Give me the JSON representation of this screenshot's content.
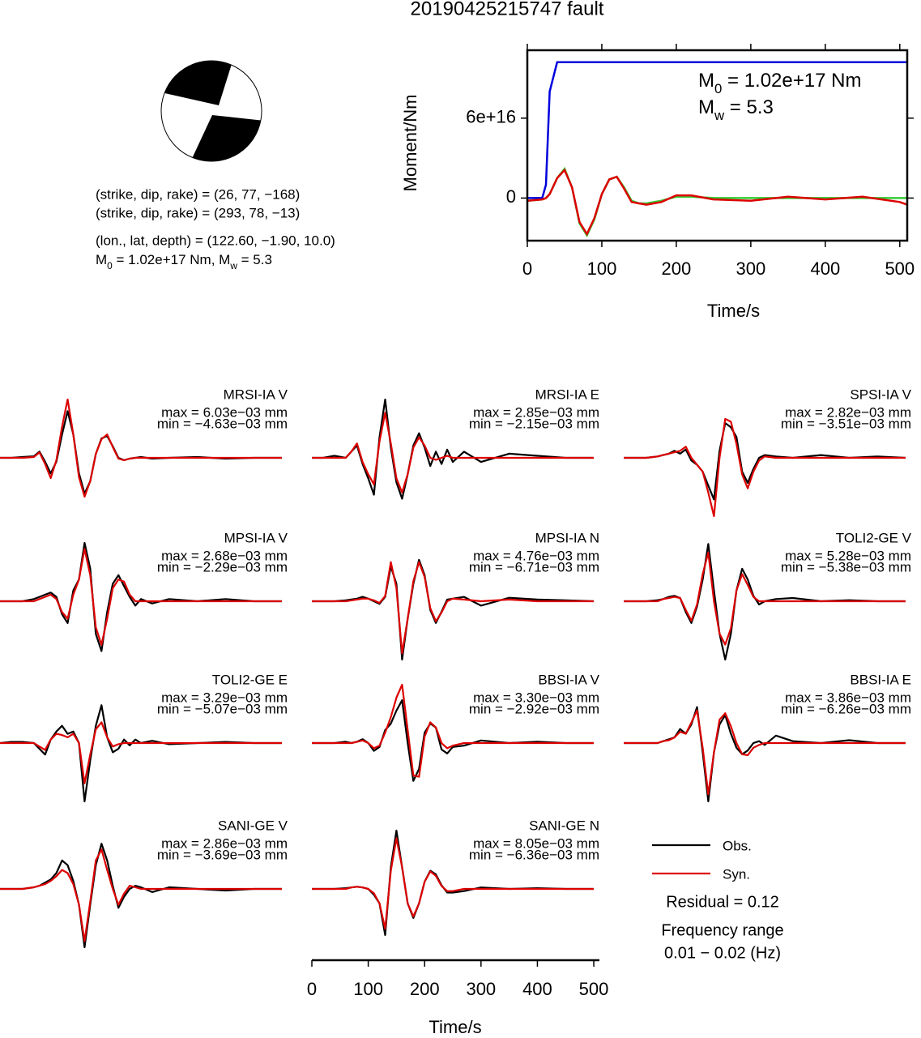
{
  "title": "20190425215747 fault",
  "focal_mechanism": {
    "lines": [
      "(strike, dip, rake) = (26, 77, −168)",
      "(strike, dip, rake) = (293, 78, −13)",
      "(lon., lat, depth) = (122.60, −1.90, 10.0)"
    ],
    "moment_parts": [
      "M",
      "0",
      " = 1.02e+17 Nm, M",
      "w",
      " = 5.3"
    ]
  },
  "chart_data": [
    {
      "type": "line",
      "ylabel": "Moment/Nm",
      "xlabel": "Time/s",
      "x": [
        0,
        20,
        25,
        30,
        40,
        50,
        60,
        70,
        80,
        90,
        100,
        110,
        120,
        130,
        140,
        150,
        160,
        180,
        200,
        220,
        250,
        300,
        350,
        400,
        450,
        500,
        510
      ],
      "xlim": [
        0,
        510
      ],
      "xticks": [
        0,
        100,
        200,
        300,
        400,
        500
      ],
      "ylim": [
        -3.2e+16,
        1.11e+17
      ],
      "yticks": [
        0,
        {
          "value": 6e+16,
          "label": "6e+16"
        }
      ],
      "annotations": [
        [
          "M",
          "0",
          " = 1.02e+17 Nm"
        ],
        [
          "M",
          "w",
          " = 5.3"
        ]
      ],
      "series": [
        {
          "color": "#0000dd",
          "values": [
            0,
            0,
            1e+16,
            8e+16,
            1.02e+17,
            1.02e+17,
            1.02e+17,
            1.02e+17,
            1.02e+17,
            1.02e+17,
            1.02e+17,
            1.02e+17,
            1.02e+17,
            1.02e+17,
            1.02e+17,
            1.02e+17,
            1.02e+17,
            1.02e+17,
            1.02e+17,
            1.02e+17,
            1.02e+17,
            1.02e+17,
            1.02e+17,
            1.02e+17,
            1.02e+17,
            1.02e+17,
            1.02e+17
          ]
        },
        {
          "color": "#33cc33",
          "values": [
            -2000000000000000.0,
            -1000000000000000.0,
            0,
            3000000000000000.0,
            1.5e+16,
            2.2e+16,
            8000000000000000.0,
            -1.9e+16,
            -2.8e+16,
            -1.6e+16,
            3000000000000000.0,
            1.4e+16,
            1.6e+16,
            8000000000000000.0,
            -2000000000000000.0,
            -4000000000000000.0,
            -4000000000000000.0,
            -2000000000000000.0,
            1000000000000000.0,
            1000000000000000.0,
            0,
            0,
            0,
            0,
            0,
            0,
            0
          ]
        },
        {
          "color": "#dd0000",
          "values": [
            -2000000000000000.0,
            -1000000000000000.0,
            0,
            3000000000000000.0,
            1.5e+16,
            2.1e+16,
            8000000000000000.0,
            -1.8e+16,
            -2.7e+16,
            -1.5e+16,
            3000000000000000.0,
            1.4e+16,
            1.6e+16,
            7000000000000000.0,
            -3000000000000000.0,
            -4000000000000000.0,
            -5000000000000000.0,
            -3000000000000000.0,
            2000000000000000.0,
            2000000000000000.0,
            -1000000000000000.0,
            -2000000000000000.0,
            1000000000000000.0,
            -1000000000000000.0,
            1000000000000000.0,
            -3000000000000000.0,
            -5000000000000000.0
          ]
        }
      ]
    },
    {
      "type": "waveforms",
      "xlabel": "Time/s",
      "x": [
        0,
        20,
        40,
        60,
        70,
        80,
        90,
        100,
        110,
        120,
        130,
        140,
        150,
        160,
        170,
        180,
        190,
        200,
        210,
        220,
        230,
        240,
        250,
        270,
        300,
        350,
        400,
        450,
        500
      ],
      "xlim": [
        0,
        510
      ],
      "xticks": [
        0,
        100,
        200,
        300,
        400,
        500
      ],
      "legend": [
        {
          "name": "Obs.",
          "color": "#000000"
        },
        {
          "name": "Syn.",
          "color": "#dd0000"
        }
      ],
      "residual": "Residual = 0.12",
      "frequency": [
        "Frequency range",
        "0.01 − 0.02 (Hz)"
      ],
      "panels": [
        {
          "station": "MRSI-IA V",
          "max_label": "max = 6.03e−03 mm",
          "min_label": "min = −4.63e−03 mm",
          "obs": [
            0,
            0,
            0.1,
            0.2,
            0.8,
            -0.5,
            -2,
            -0.5,
            3,
            6,
            3,
            -2,
            -4.6,
            -3,
            0.5,
            2.5,
            2.8,
            1.5,
            0,
            -0.3,
            -0.1,
            0,
            0.1,
            -0.1,
            0,
            0.1,
            -0.1,
            0,
            0
          ],
          "syn": [
            0,
            0,
            0,
            0.1,
            0.7,
            -0.8,
            -2.6,
            -0.3,
            4,
            7.5,
            3,
            -2.5,
            -5,
            -3,
            0.5,
            2.4,
            3,
            1.4,
            -0.1,
            -0.3,
            -0.1,
            0,
            0,
            0,
            0,
            0,
            0,
            0,
            0
          ]
        },
        {
          "station": "MRSI-IA E",
          "max_label": "max = 2.85e−03 mm",
          "min_label": "min = −2.15e−03 mm",
          "obs": [
            0,
            0,
            0.1,
            0,
            0.3,
            0.6,
            -0.3,
            -1,
            -1.8,
            1,
            2.85,
            0.5,
            -1.2,
            -2,
            -0.8,
            0.6,
            1.2,
            0.5,
            -0.4,
            0.3,
            -0.3,
            0.4,
            -0.2,
            0.3,
            -0.2,
            0.2,
            0.1,
            0,
            0
          ],
          "syn": [
            0,
            0,
            0,
            0,
            0.3,
            0.7,
            -0.2,
            -0.8,
            -1.3,
            0.8,
            2.2,
            0.7,
            -1,
            -1.7,
            -0.8,
            0.5,
            1,
            0.6,
            0,
            -0.1,
            0,
            0.1,
            0,
            0,
            0,
            0,
            0,
            0,
            0
          ]
        },
        {
          "station": "SPSI-IA V",
          "max_label": "max = 2.82e−03 mm",
          "min_label": "min = −3.51e−03 mm",
          "obs": [
            0,
            0,
            0,
            0.1,
            0.2,
            0.3,
            0.5,
            0.3,
            0.6,
            -0.2,
            -0.5,
            -1,
            -2,
            -3,
            0.5,
            2.5,
            2.2,
            1.5,
            -1,
            -1.8,
            -0.8,
            0,
            0.2,
            0.1,
            0,
            0.2,
            0,
            0.1,
            0
          ],
          "syn": [
            0,
            0,
            0,
            0.1,
            0.2,
            0.3,
            0.4,
            0.5,
            0.8,
            0,
            -0.5,
            -1,
            -2.5,
            -4.2,
            0,
            2.8,
            2.6,
            1,
            -1.2,
            -2.2,
            -1,
            -0.2,
            0.1,
            0,
            0,
            0,
            0,
            0,
            0
          ]
        },
        {
          "station": "MPSI-IA V",
          "max_label": "max = 2.68e−03 mm",
          "min_label": "min = −2.29e−03 mm",
          "obs": [
            0,
            0,
            0,
            0.1,
            0.2,
            0.3,
            0.4,
            0.2,
            -0.6,
            -1,
            0.5,
            1,
            2.68,
            1.5,
            -1.5,
            -2.29,
            -0.5,
            0.8,
            1.2,
            0.7,
            0.2,
            -0.2,
            0.1,
            -0.1,
            0.1,
            0,
            0.1,
            0,
            0
          ],
          "syn": [
            0,
            0,
            0,
            0,
            0.1,
            0.2,
            0.3,
            0.1,
            -0.5,
            -0.8,
            0.3,
            1,
            2.4,
            1.2,
            -1.2,
            -2,
            -0.8,
            0.6,
            1,
            0.9,
            0.3,
            0,
            0,
            0,
            0,
            0,
            0,
            0,
            0
          ]
        },
        {
          "station": "MPSI-IA N",
          "max_label": "max = 4.76e−03 mm",
          "min_label": "min = −6.71e−03 mm",
          "obs": [
            0,
            0,
            0,
            0.1,
            0.2,
            0.3,
            0.5,
            0.3,
            0,
            -0.3,
            0.5,
            4,
            2,
            -6.71,
            -2,
            2,
            4.76,
            3,
            -1,
            -2.5,
            -1.2,
            0.2,
            0.3,
            0.5,
            -0.5,
            0.4,
            0.2,
            0.1,
            0
          ],
          "syn": [
            0,
            0,
            0,
            0,
            0.1,
            0.2,
            0.3,
            0.3,
            0.1,
            -0.2,
            0.6,
            4.5,
            1.5,
            -6,
            -2,
            2.3,
            4.5,
            2.8,
            -0.8,
            -2.3,
            -1.3,
            0,
            0.3,
            0.2,
            0,
            0.2,
            0,
            0,
            0
          ]
        },
        {
          "station": "TOLI2-GE V",
          "max_label": "max = 5.28e−03 mm",
          "min_label": "min = −5.38e−03 mm",
          "obs": [
            0,
            0,
            0,
            0.1,
            0.2,
            0.4,
            0.5,
            0.3,
            -1,
            -2,
            -0.5,
            2,
            5.28,
            1,
            -3,
            -5.38,
            -3,
            1,
            3,
            2,
            0.5,
            -0.3,
            0,
            0.2,
            0.3,
            0,
            0.1,
            0,
            0
          ],
          "syn": [
            0,
            0,
            0,
            0,
            0.2,
            0.3,
            0.4,
            0.3,
            -0.8,
            -1.8,
            -0.3,
            2.5,
            4.5,
            0,
            -3,
            -4,
            -2.5,
            1,
            2.5,
            1.5,
            0.4,
            0,
            0,
            0,
            0,
            0,
            0,
            0,
            0
          ]
        },
        {
          "station": "TOLI2-GE E",
          "max_label": "max = 3.29e−03 mm",
          "min_label": "min = −5.07e−03 mm",
          "obs": [
            0,
            0.1,
            0.1,
            0,
            -0.5,
            -1,
            0.3,
            1,
            1.5,
            0.8,
            1,
            0,
            -5.07,
            -1.5,
            1.5,
            3.29,
            0.5,
            -0.8,
            -0.5,
            0.3,
            -0.2,
            0.3,
            0,
            0.2,
            -0.1,
            0,
            0.1,
            0,
            0
          ],
          "syn": [
            0,
            0,
            0,
            0,
            -0.3,
            -0.6,
            0.3,
            0.8,
            0.7,
            0.5,
            0.8,
            0,
            -3.5,
            -1,
            1.2,
            1.8,
            0.5,
            -0.3,
            -0.1,
            0,
            0,
            0,
            0,
            0,
            0,
            0,
            0,
            0,
            0
          ]
        },
        {
          "station": "BBSI-IA V",
          "max_label": "max = 3.30e−03 mm",
          "min_label": "min = −2.92e−03 mm",
          "obs": [
            0,
            0,
            0,
            0.1,
            0,
            0.1,
            0.3,
            0,
            -0.6,
            -0.3,
            1,
            1.5,
            2.5,
            3.3,
            0,
            -2.92,
            -2,
            0.8,
            1.5,
            1.2,
            -0.5,
            -0.8,
            -0.3,
            -0.2,
            0.2,
            0,
            0.1,
            0,
            0
          ],
          "syn": [
            0,
            0,
            0,
            0,
            0,
            0.1,
            0.2,
            0,
            -0.4,
            -0.2,
            0.8,
            2,
            3.5,
            4.5,
            1,
            -2.5,
            -2.6,
            0.5,
            1.6,
            1.2,
            0,
            -0.4,
            -0.2,
            0,
            0,
            0,
            0,
            0,
            0
          ]
        },
        {
          "station": "BBSI-IA E",
          "max_label": "max = 3.86e−03 mm",
          "min_label": "min = −6.26e−03 mm",
          "obs": [
            0,
            0,
            0,
            0,
            0.2,
            0.4,
            0.6,
            1.5,
            1,
            2,
            3.86,
            -1,
            -6.26,
            -1,
            2,
            3,
            1,
            -0.5,
            -1.2,
            -0.8,
            0,
            0.2,
            -0.2,
            0.8,
            0.2,
            0,
            0.3,
            0,
            0
          ],
          "syn": [
            0,
            0,
            0,
            0,
            0.2,
            0.3,
            0.6,
            1.2,
            1,
            2.2,
            3.5,
            -0.5,
            -5.5,
            -1,
            2.5,
            3.2,
            1.8,
            0,
            -1.2,
            -1.3,
            -0.5,
            -0.2,
            0,
            0,
            0,
            0,
            0,
            0,
            0
          ]
        },
        {
          "station": "SANI-GE V",
          "max_label": "max = 2.86e−03 mm",
          "min_label": "min = −3.69e−03 mm",
          "obs": [
            0,
            0,
            0,
            0.1,
            0.2,
            0.4,
            0.6,
            1,
            1.8,
            1.5,
            0.5,
            -1,
            -3.69,
            -1,
            1.5,
            2.86,
            1.8,
            0.2,
            -1.2,
            -0.5,
            0,
            0.2,
            0.1,
            -0.2,
            0.1,
            0,
            -0.1,
            0,
            0
          ],
          "syn": [
            0,
            0,
            0,
            0.1,
            0.2,
            0.3,
            0.5,
            0.8,
            1.2,
            1,
            0.3,
            -1,
            -3.3,
            -0.8,
            1.8,
            2.5,
            1.2,
            0,
            -1,
            -0.3,
            0.2,
            0.1,
            0,
            0,
            0,
            0,
            0,
            0,
            0
          ]
        },
        {
          "station": "SANI-GE N",
          "max_label": "max = 8.05e−03 mm",
          "min_label": "min = −6.36e−03 mm",
          "obs": [
            0,
            0,
            0,
            0.1,
            0.2,
            0.3,
            0.2,
            0,
            -0.8,
            -2,
            -6.36,
            3,
            8.05,
            3,
            -2,
            -4,
            -2,
            1,
            2.5,
            2,
            0.5,
            -0.5,
            -0.5,
            -0.3,
            0.2,
            0,
            0.1,
            0,
            0
          ],
          "syn": [
            0,
            0,
            0,
            0,
            0.2,
            0.3,
            0.2,
            0,
            -0.6,
            -2,
            -5.5,
            2.5,
            7,
            3,
            -2,
            -3.8,
            -2,
            1,
            2.4,
            1.8,
            0.4,
            -0.3,
            -0.3,
            0,
            0,
            0,
            0,
            0,
            0
          ]
        }
      ]
    }
  ]
}
